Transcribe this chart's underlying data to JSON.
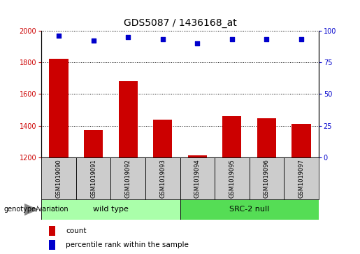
{
  "title": "GDS5087 / 1436168_at",
  "samples": [
    "GSM1019090",
    "GSM1019091",
    "GSM1019092",
    "GSM1019093",
    "GSM1019094",
    "GSM1019095",
    "GSM1019096",
    "GSM1019097"
  ],
  "counts": [
    1820,
    1370,
    1680,
    1440,
    1215,
    1460,
    1445,
    1410
  ],
  "percentile_ranks": [
    96,
    92,
    95,
    93,
    90,
    93,
    93,
    93
  ],
  "ylim_left": [
    1200,
    2000
  ],
  "ylim_right": [
    0,
    100
  ],
  "yticks_left": [
    1200,
    1400,
    1600,
    1800,
    2000
  ],
  "yticks_right": [
    0,
    25,
    50,
    75,
    100
  ],
  "bar_color": "#cc0000",
  "scatter_color": "#0000cc",
  "grid_color": "#000000",
  "bg_color": "#ffffff",
  "plot_bg_color": "#ffffff",
  "sample_box_color": "#cccccc",
  "wildtype_color": "#aaffaa",
  "srcnull_color": "#55dd55",
  "wildtype_label": "wild type",
  "srcnull_label": "SRC-2 null",
  "legend_count_label": "count",
  "legend_pct_label": "percentile rank within the sample",
  "genotype_label": "genotype/variation",
  "bar_width": 0.55,
  "title_fontsize": 10,
  "tick_fontsize": 7,
  "sample_fontsize": 6,
  "group_fontsize": 8,
  "legend_fontsize": 7.5
}
